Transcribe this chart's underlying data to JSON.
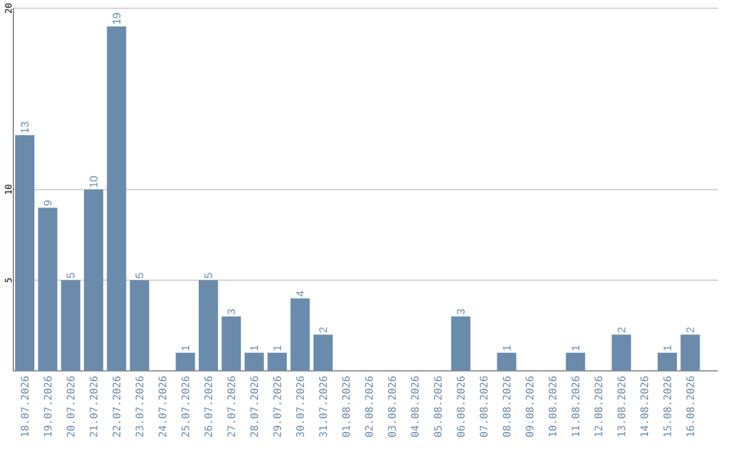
{
  "chart_data": {
    "type": "bar",
    "categories": [
      "18.07.2026",
      "19.07.2026",
      "20.07.2026",
      "21.07.2026",
      "22.07.2026",
      "23.07.2026",
      "24.07.2026",
      "25.07.2026",
      "26.07.2026",
      "27.07.2026",
      "28.07.2026",
      "29.07.2026",
      "30.07.2026",
      "31.07.2026",
      "01.08.2026",
      "02.08.2026",
      "03.08.2026",
      "04.08.2026",
      "05.08.2026",
      "06.08.2026",
      "07.08.2026",
      "08.08.2026",
      "09.08.2026",
      "10.08.2026",
      "11.08.2026",
      "12.08.2026",
      "13.08.2026",
      "14.08.2026",
      "15.08.2026",
      "16.08.2026"
    ],
    "values": [
      13,
      9,
      5,
      10,
      19,
      5,
      0,
      1,
      5,
      3,
      1,
      1,
      4,
      2,
      0,
      0,
      0,
      0,
      0,
      3,
      0,
      1,
      0,
      0,
      1,
      0,
      2,
      0,
      1,
      2
    ],
    "value_labels": [
      "13",
      "9",
      "5",
      "10",
      "19",
      "5",
      null,
      "1",
      "5",
      "3",
      "1",
      "1",
      "4",
      "2",
      null,
      null,
      null,
      null,
      null,
      "3",
      null,
      "1",
      null,
      null,
      "1",
      null,
      "2",
      null,
      "1",
      "2"
    ],
    "color": "#6a8bab",
    "ylim": [
      0,
      20
    ],
    "yticks": [
      5,
      10,
      20
    ],
    "grid": "y"
  }
}
